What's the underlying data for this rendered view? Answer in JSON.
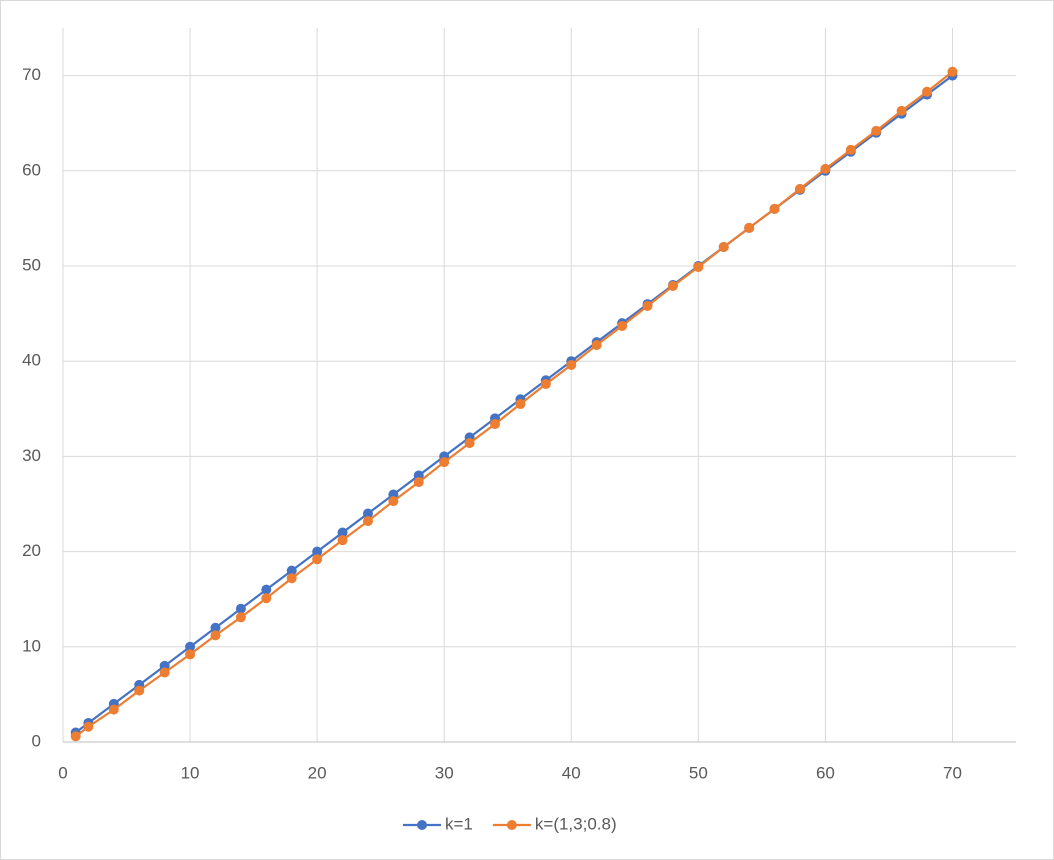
{
  "chart_data": {
    "type": "scatter",
    "x": [
      1,
      2,
      4,
      6,
      8,
      10,
      12,
      14,
      16,
      18,
      20,
      22,
      24,
      26,
      28,
      30,
      32,
      34,
      36,
      38,
      40,
      42,
      44,
      46,
      48,
      50,
      52,
      54,
      56,
      58,
      60,
      62,
      64,
      66,
      68,
      70
    ],
    "series": [
      {
        "name": "k=1",
        "color": "#4472c4",
        "values": [
          1,
          2,
          4,
          6,
          8,
          10,
          12,
          14,
          16,
          18,
          20,
          22,
          24,
          26,
          28,
          30,
          32,
          34,
          36,
          38,
          40,
          42,
          44,
          46,
          48,
          50,
          52,
          54,
          56,
          58,
          60,
          62,
          64,
          66,
          68,
          70
        ]
      },
      {
        "name": "k=(1,3;0.8)",
        "color": "#ed7d31",
        "values": [
          0.6,
          1.6,
          3.4,
          5.4,
          7.3,
          9.2,
          11.2,
          13.1,
          15.1,
          17.2,
          19.2,
          21.2,
          23.2,
          25.3,
          27.3,
          29.4,
          31.4,
          33.4,
          35.5,
          37.6,
          39.6,
          41.7,
          43.7,
          45.8,
          47.9,
          49.9,
          52.0,
          54.0,
          56.0,
          58.1,
          60.2,
          62.2,
          64.2,
          66.3,
          68.3,
          70.4
        ]
      }
    ],
    "xlim": [
      0,
      75
    ],
    "xticks": [
      0,
      10,
      20,
      30,
      40,
      50,
      60,
      70
    ],
    "ylim": [
      0,
      75
    ],
    "yticks": [
      0,
      10,
      20,
      30,
      40,
      50,
      60,
      70
    ],
    "grid": true,
    "legend": "bottom"
  }
}
